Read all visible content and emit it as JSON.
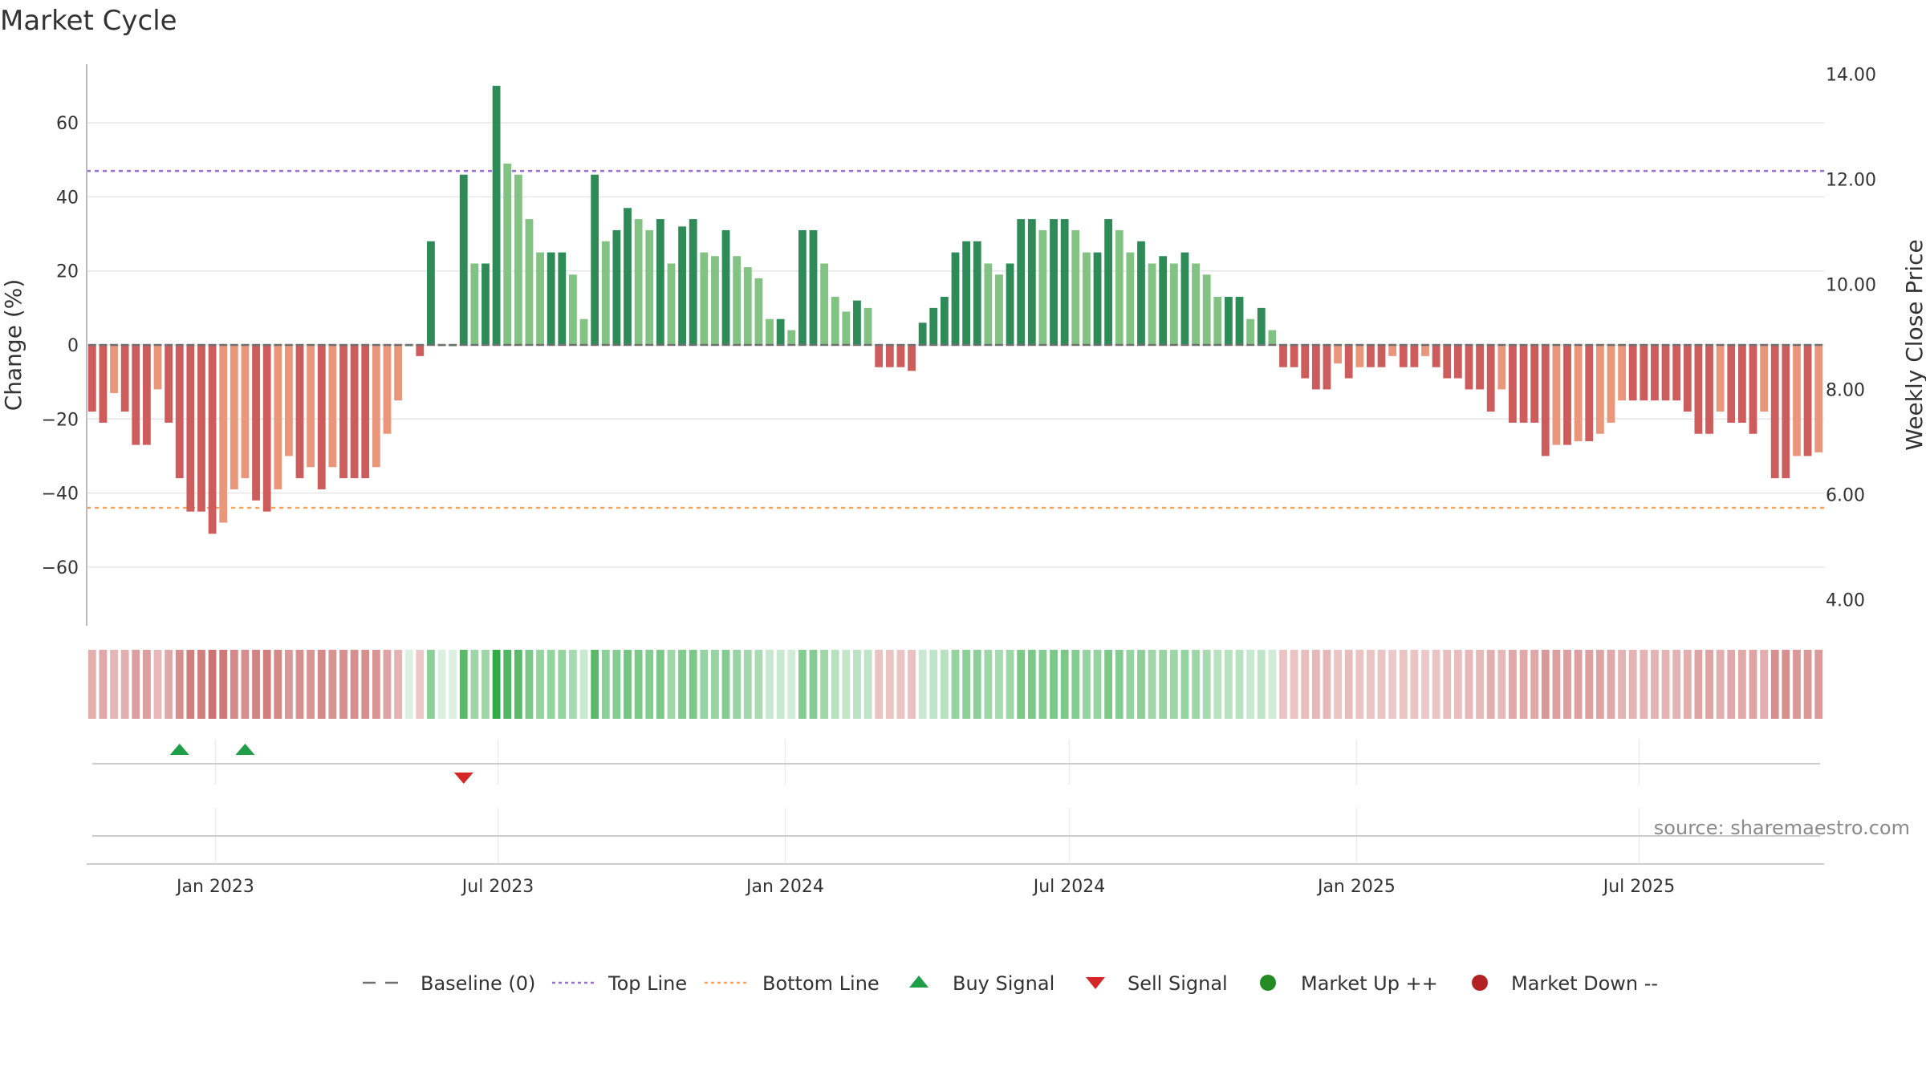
{
  "chart_data": {
    "type": "bar",
    "title": "Market Cycle",
    "ylabel_left": "Change (%)",
    "ylabel_right": "Weekly Close Price",
    "y_left_ticks": [
      -60,
      -40,
      -20,
      0,
      20,
      40,
      60
    ],
    "y_left_tick_labels": [
      "−60",
      "−40",
      "−20",
      "0",
      "20",
      "40",
      "60"
    ],
    "ylim_left": [
      -76,
      76
    ],
    "y_right_ticks": [
      "4.00",
      "6.00",
      "8.00",
      "10.00",
      "12.00",
      "14.00"
    ],
    "ylim_right": [
      3.5,
      14.5
    ],
    "top_line": 47,
    "bottom_line": -44,
    "x_ticks": [
      {
        "label": "Jan 2023",
        "date": "2023-01-01"
      },
      {
        "label": "Jul 2023",
        "date": "2023-07-01"
      },
      {
        "label": "Jan 2024",
        "date": "2024-01-01"
      },
      {
        "label": "Jul 2024",
        "date": "2024-07-01"
      },
      {
        "label": "Jan 2025",
        "date": "2025-01-01"
      },
      {
        "label": "Jul 2025",
        "date": "2025-07-01"
      }
    ],
    "first_week": "2022-10-14",
    "series": [
      {
        "name": "Change (%)",
        "values": [
          -18,
          -21,
          -13,
          -18,
          -27,
          -27,
          -12,
          -21,
          -36,
          -45,
          -45,
          -51,
          -48,
          -39,
          -36,
          -42,
          -45,
          -39,
          -30,
          -36,
          -33,
          -39,
          -33,
          -36,
          -36,
          -36,
          -33,
          -24,
          -15,
          0,
          -3,
          28,
          0,
          0,
          46,
          22,
          22,
          70,
          49,
          46,
          34,
          25,
          25,
          25,
          19,
          7,
          46,
          28,
          31,
          37,
          34,
          31,
          34,
          22,
          32,
          34,
          25,
          24,
          31,
          24,
          21,
          18,
          7,
          7,
          4,
          31,
          31,
          22,
          13,
          9,
          12,
          10,
          -6,
          -6,
          -6,
          -7,
          6,
          10,
          13,
          25,
          28,
          28,
          22,
          19,
          22,
          34,
          34,
          31,
          34,
          34,
          31,
          25,
          25,
          34,
          31,
          25,
          28,
          22,
          24,
          22,
          25,
          22,
          19,
          13,
          13,
          13,
          7,
          10,
          4,
          -6,
          -6,
          -9,
          -12,
          -12,
          -5,
          -9,
          -6,
          -6,
          -6,
          -3,
          -6,
          -6,
          -3,
          -6,
          -9,
          -9,
          -12,
          -12,
          -18,
          -12,
          -21,
          -21,
          -21,
          -30,
          -27,
          -27,
          -26,
          -26,
          -24,
          -21,
          -15,
          -15,
          -15,
          -15,
          -15,
          -15,
          -18,
          -24,
          -24,
          -18,
          -21,
          -21,
          -24,
          -18,
          -36,
          -36,
          -30,
          -30,
          -29
        ]
      }
    ],
    "buy_signals": [
      "2022-12-09",
      "2023-01-20"
    ],
    "sell_signals": [
      "2023-06-09"
    ],
    "legend": [
      "Baseline (0)",
      "Top Line",
      "Bottom Line",
      "Buy Signal",
      "Sell Signal",
      "Market Up ++",
      "Market Down --"
    ],
    "legend_placement": "bottom-center",
    "grid": true,
    "colors": {
      "strong_up": "#2e8b57",
      "up": "#82c282",
      "strong_down": "#cd5c5c",
      "down": "#e9967a",
      "top_line": "#9a6fd0",
      "bottom_line": "#f4a460",
      "baseline": "#707070",
      "buy": "#1f9e4a",
      "sell": "#d62728",
      "market_up": "#228b22",
      "market_down": "#b22222"
    }
  },
  "source": "source: sharemaestro.com"
}
